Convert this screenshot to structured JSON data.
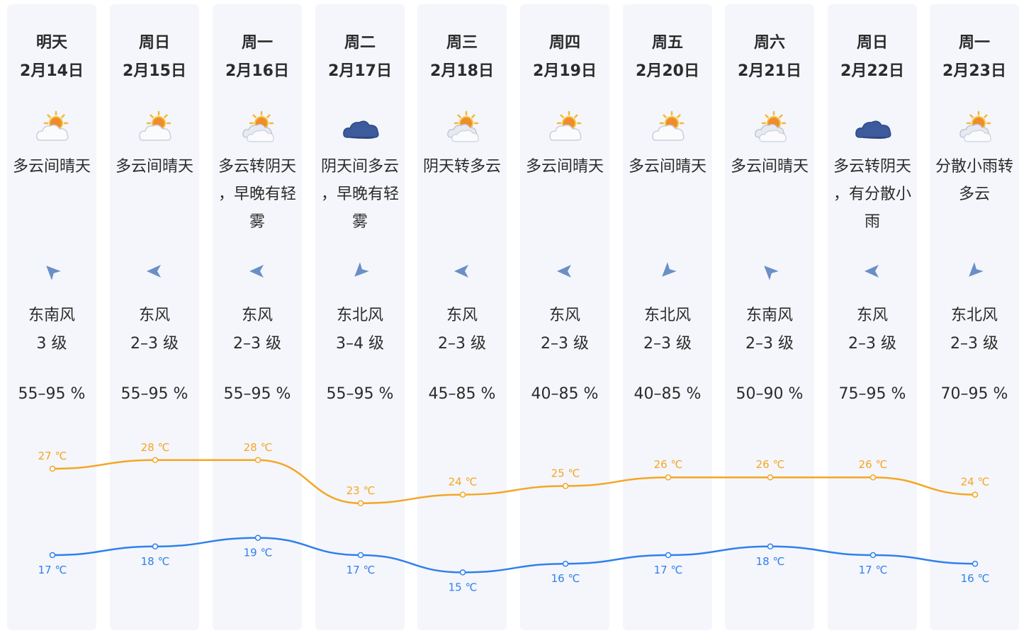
{
  "colors": {
    "high": "#f5a623",
    "low": "#2f80ed",
    "column_bg": "#f4f6fb"
  },
  "days": [
    {
      "day": "明天",
      "date": "2月14日",
      "icon": "partly-sunny-icon",
      "desc": "多云间晴天",
      "wind_dir": "东南风",
      "wind_level": "3 级",
      "wind_angle": -45,
      "humidity": "55–95 %",
      "high": "27 ℃",
      "low": "17 ℃"
    },
    {
      "day": "周日",
      "date": "2月15日",
      "icon": "partly-sunny-icon",
      "desc": "多云间晴天",
      "wind_dir": "东风",
      "wind_level": "2–3 级",
      "wind_angle": -90,
      "humidity": "55–95 %",
      "high": "28 ℃",
      "low": "18 ℃"
    },
    {
      "day": "周一",
      "date": "2月16日",
      "icon": "cloudy-sun-icon",
      "desc": "多云转阴天，早晚有轻雾",
      "wind_dir": "东风",
      "wind_level": "2–3 级",
      "wind_angle": -90,
      "humidity": "55–95 %",
      "high": "28 ℃",
      "low": "19 ℃"
    },
    {
      "day": "周二",
      "date": "2月17日",
      "icon": "overcast-cloud-icon",
      "desc": "阴天间多云，早晚有轻雾",
      "wind_dir": "东北风",
      "wind_level": "3–4 级",
      "wind_angle": -135,
      "humidity": "55–95 %",
      "high": "23 ℃",
      "low": "17 ℃"
    },
    {
      "day": "周三",
      "date": "2月18日",
      "icon": "cloudy-sun-icon",
      "desc": "阴天转多云",
      "wind_dir": "东风",
      "wind_level": "2–3 级",
      "wind_angle": -90,
      "humidity": "45–85 %",
      "high": "24 ℃",
      "low": "15 ℃"
    },
    {
      "day": "周四",
      "date": "2月19日",
      "icon": "partly-sunny-icon",
      "desc": "多云间晴天",
      "wind_dir": "东风",
      "wind_level": "2–3 级",
      "wind_angle": -90,
      "humidity": "40–85 %",
      "high": "25 ℃",
      "low": "16 ℃"
    },
    {
      "day": "周五",
      "date": "2月20日",
      "icon": "partly-sunny-icon",
      "desc": "多云间晴天",
      "wind_dir": "东北风",
      "wind_level": "2–3 级",
      "wind_angle": -135,
      "humidity": "40–85 %",
      "high": "26 ℃",
      "low": "17 ℃"
    },
    {
      "day": "周六",
      "date": "2月21日",
      "icon": "cloudy-sun-icon",
      "desc": "多云间晴天",
      "wind_dir": "东南风",
      "wind_level": "2–3 级",
      "wind_angle": -45,
      "humidity": "50–90 %",
      "high": "26 ℃",
      "low": "18 ℃"
    },
    {
      "day": "周日",
      "date": "2月22日",
      "icon": "overcast-cloud-icon",
      "desc": "多云转阴天，有分散小雨",
      "wind_dir": "东风",
      "wind_level": "2–3 级",
      "wind_angle": -90,
      "humidity": "75–95 %",
      "high": "26 ℃",
      "low": "17 ℃"
    },
    {
      "day": "周一",
      "date": "2月23日",
      "icon": "cloudy-sun-icon",
      "desc": "分散小雨转多云",
      "wind_dir": "东北风",
      "wind_level": "2–3 级",
      "wind_angle": -135,
      "humidity": "70–95 %",
      "high": "24 ℃",
      "low": "16 ℃"
    }
  ],
  "chart_data": {
    "type": "line",
    "categories": [
      "2月14日",
      "2月15日",
      "2月16日",
      "2月17日",
      "2月18日",
      "2月19日",
      "2月20日",
      "2月21日",
      "2月22日",
      "2月23日"
    ],
    "series": [
      {
        "values": [
          27,
          28,
          28,
          23,
          24,
          25,
          26,
          26,
          26,
          24
        ]
      },
      {
        "values": [
          17,
          18,
          19,
          17,
          15,
          16,
          17,
          18,
          17,
          16
        ]
      }
    ],
    "unit": "℃"
  }
}
